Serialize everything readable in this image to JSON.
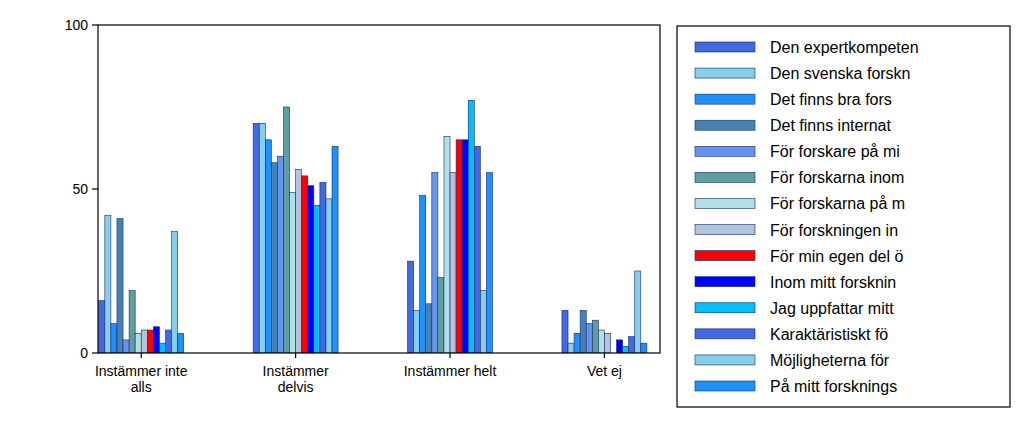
{
  "chart_data": {
    "type": "bar",
    "categories": [
      "Instämmer inte alls",
      "Instämmer delvis",
      "Instämmer helt",
      "Vet ej"
    ],
    "series": [
      {
        "name": "Den expertkompeten",
        "color": "#4169E1",
        "values": [
          16,
          70,
          28,
          13
        ]
      },
      {
        "name": "Den svenska forskn",
        "color": "#87CEEB",
        "values": [
          42,
          70,
          13,
          3
        ]
      },
      {
        "name": "Det finns bra fors",
        "color": "#1E90FF",
        "values": [
          9,
          65,
          48,
          6
        ]
      },
      {
        "name": "Det finns internat",
        "color": "#4682B4",
        "values": [
          41,
          58,
          15,
          13
        ]
      },
      {
        "name": "För forskare på mi",
        "color": "#6495ED",
        "values": [
          4,
          60,
          55,
          9
        ]
      },
      {
        "name": "För forskarna inom",
        "color": "#5F9EA0",
        "values": [
          19,
          75,
          23,
          10
        ]
      },
      {
        "name": "För forskarna på m",
        "color": "#B0E0E6",
        "values": [
          6,
          49,
          66,
          7
        ]
      },
      {
        "name": "För forskningen in",
        "color": "#B0C4DE",
        "values": [
          7,
          56,
          55,
          6
        ]
      },
      {
        "name": "För min egen del ö",
        "color": "#FF0000",
        "values": [
          7,
          54,
          65,
          0
        ]
      },
      {
        "name": "Inom mitt forsknin",
        "color": "#0000FF",
        "values": [
          8,
          51,
          65,
          4
        ]
      },
      {
        "name": "Jag uppfattar mitt",
        "color": "#00BFFF",
        "values": [
          3,
          45,
          77,
          2
        ]
      },
      {
        "name": "Karaktäristiskt fö",
        "color": "#4169E1",
        "values": [
          7,
          52,
          63,
          5
        ]
      },
      {
        "name": "Möjligheterna för",
        "color": "#87CEEB",
        "values": [
          37,
          47,
          19,
          25
        ]
      },
      {
        "name": "På mitt forsknings",
        "color": "#1E90FF",
        "values": [
          6,
          63,
          55,
          3
        ]
      }
    ],
    "ylim": [
      0,
      100
    ],
    "yticks": [
      0,
      50,
      100
    ],
    "grid": false,
    "legend": "right"
  }
}
